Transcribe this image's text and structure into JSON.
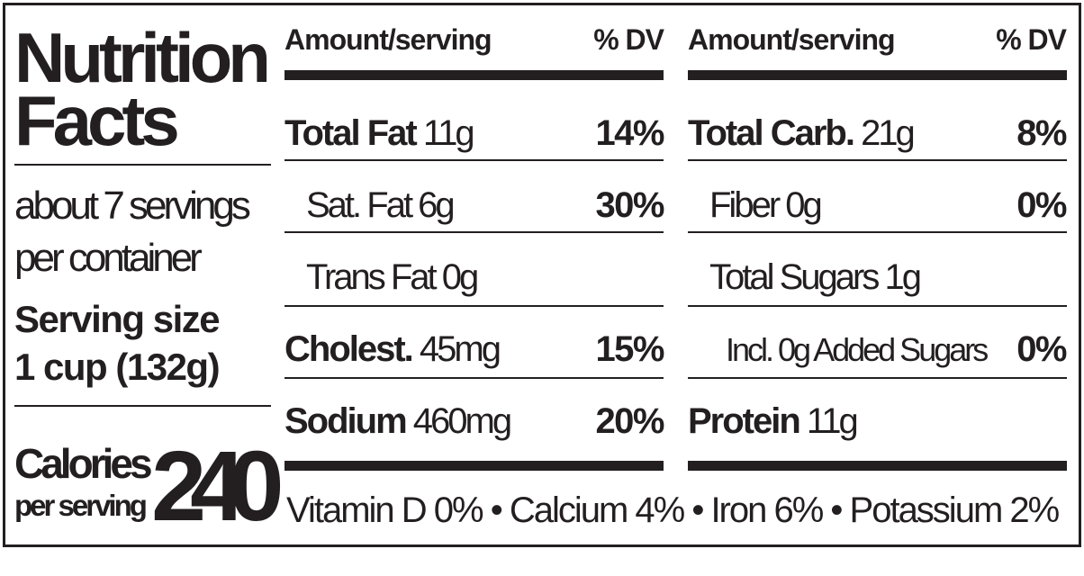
{
  "title_line1": "Nutrition",
  "title_line2": "Facts",
  "servings_line1": "about 7 servings",
  "servings_line2": "per container",
  "serving_size_label": "Serving size",
  "serving_size_value": "1 cup (132g)",
  "calories_label": "Calories",
  "calories_sub": "per serving",
  "calories_value": "240",
  "left_table": {
    "header_amount": "Amount/serving",
    "header_dv": "% DV",
    "rows": [
      {
        "name": "Total Fat",
        "amount": "11g",
        "dv": "14%",
        "bold": true
      },
      {
        "name": "Sat. Fat 6g",
        "amount": "",
        "dv": "30%",
        "bold": false
      },
      {
        "name": "Trans Fat 0g",
        "amount": "",
        "dv": "",
        "bold": false
      },
      {
        "name": "Cholest.",
        "amount": "45mg",
        "dv": "15%",
        "bold": true
      },
      {
        "name": "Sodium",
        "amount": "460mg",
        "dv": "20%",
        "bold": true
      }
    ]
  },
  "right_table": {
    "header_amount": "Amount/serving",
    "header_dv": "% DV",
    "rows": [
      {
        "name": "Total Carb.",
        "amount": "21g",
        "dv": "8%",
        "bold": true
      },
      {
        "name": "Fiber 0g",
        "amount": "",
        "dv": "0%",
        "bold": false
      },
      {
        "name": "Total Sugars 1g",
        "amount": "",
        "dv": "",
        "bold": false
      },
      {
        "name": "Incl. 0g Added Sugars",
        "amount": "",
        "dv": "0%",
        "bold": false
      },
      {
        "name": "Protein",
        "amount": "11g",
        "dv": "",
        "bold": true
      }
    ]
  },
  "footer": "Vitamin D 0% • Calcium 4% • Iron 6% • Potassium 2%"
}
